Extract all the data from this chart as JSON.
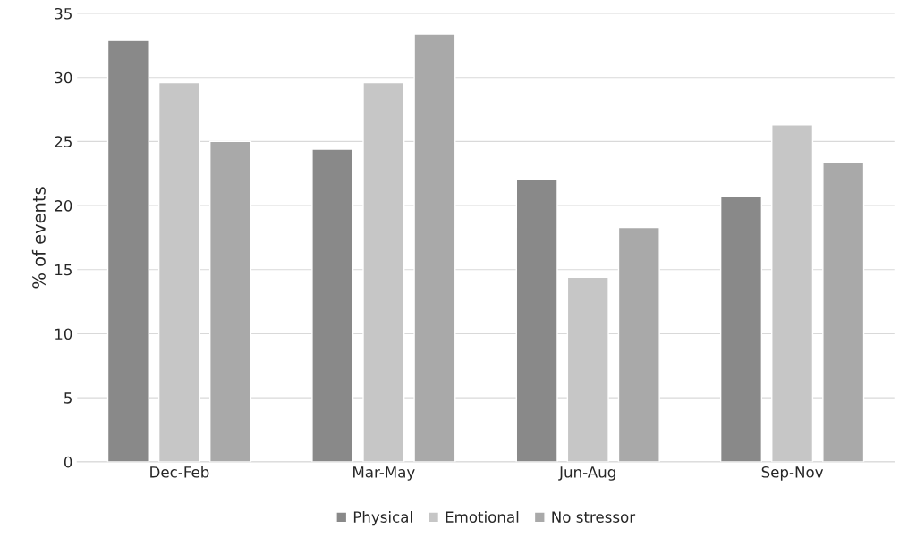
{
  "chart_data": {
    "type": "bar",
    "ylabel": "% of events",
    "categories": [
      "Dec-Feb",
      "Mar-May",
      "Jun-Aug",
      "Sep-Nov"
    ],
    "series": [
      {
        "name": "Physical",
        "color": "#898989",
        "values": [
          32.9,
          24.4,
          22.0,
          20.7
        ]
      },
      {
        "name": "Emotional",
        "color": "#c6c6c6",
        "values": [
          29.6,
          29.6,
          14.4,
          26.3
        ]
      },
      {
        "name": "No stressor",
        "color": "#a9a9a9",
        "values": [
          25.0,
          33.4,
          18.3,
          23.4
        ]
      }
    ],
    "ylim": [
      0,
      35
    ],
    "yticks": [
      0,
      5,
      10,
      15,
      20,
      25,
      30,
      35
    ],
    "grid": "y",
    "legend": "bottom"
  }
}
